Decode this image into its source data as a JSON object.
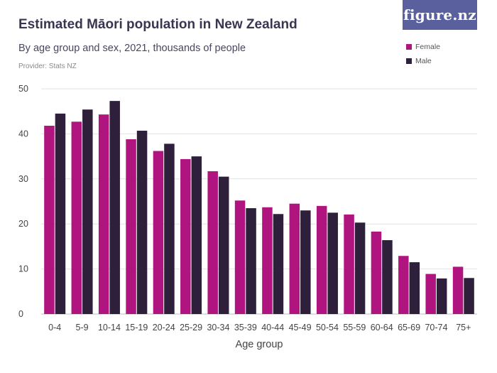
{
  "header": {
    "title": "Estimated Māori population in New Zealand",
    "subtitle": "By age group and sex, 2021, thousands of people",
    "provider": "Provider: Stats NZ",
    "logo": "figure.nz"
  },
  "colors": {
    "female": "#b0157f",
    "male": "#2e1f3b",
    "grid": "#e2e2e2",
    "logo_bg": "#5a5f9e"
  },
  "chart_data": {
    "type": "bar",
    "xlabel": "Age group",
    "ylabel": "",
    "ylim": [
      0,
      50
    ],
    "yticks": [
      0,
      10,
      20,
      30,
      40,
      50
    ],
    "grid": true,
    "legend_position": "top-right",
    "categories": [
      "0-4",
      "5-9",
      "10-14",
      "15-19",
      "20-24",
      "25-29",
      "30-34",
      "35-39",
      "40-44",
      "45-49",
      "50-54",
      "55-59",
      "60-64",
      "65-69",
      "70-74",
      "75+"
    ],
    "series": [
      {
        "name": "Female",
        "color": "#b0157f",
        "values": [
          41.8,
          42.7,
          44.3,
          38.8,
          36.2,
          34.4,
          31.7,
          25.2,
          23.7,
          24.5,
          24.0,
          22.1,
          18.3,
          12.9,
          8.9,
          10.5
        ]
      },
      {
        "name": "Male",
        "color": "#2e1f3b",
        "values": [
          44.5,
          45.4,
          47.3,
          40.7,
          37.8,
          35.0,
          30.5,
          23.5,
          22.2,
          23.0,
          22.5,
          20.3,
          16.4,
          11.5,
          7.9,
          8.0
        ]
      }
    ]
  }
}
